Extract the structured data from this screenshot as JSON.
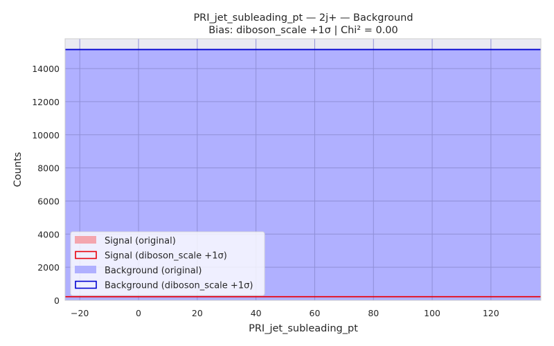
{
  "chart_data": {
    "type": "area",
    "title": "PRI_jet_subleading_pt — 2j+ — Background",
    "subtitle": "Bias: diboson_scale +1σ | Chi² = 0.00",
    "xlabel": "PRI_jet_subleading_pt",
    "ylabel": "Counts",
    "xlim": [
      -25,
      137
    ],
    "ylim": [
      0,
      15800
    ],
    "x_ticks": [
      -20,
      0,
      20,
      40,
      60,
      80,
      100,
      120
    ],
    "y_ticks": [
      0,
      2000,
      4000,
      6000,
      8000,
      10000,
      12000,
      14000
    ],
    "grid": true,
    "legend_position": "lower-left",
    "series": [
      {
        "name": "Signal (original)",
        "style": "fill",
        "color": "#f4a6ae",
        "x": [
          -25,
          137
        ],
        "y": [
          180,
          180
        ]
      },
      {
        "name": "Signal (diboson_scale +1σ)",
        "style": "step",
        "color": "#e8000b",
        "x": [
          -25,
          137
        ],
        "y": [
          220,
          220
        ]
      },
      {
        "name": "Background (original)",
        "style": "fill",
        "color": "#b0b0ff",
        "x": [
          -25,
          137
        ],
        "y": [
          15150,
          15150
        ]
      },
      {
        "name": "Background (diboson_scale +1σ)",
        "style": "step",
        "color": "#0000d0",
        "x": [
          -25,
          137
        ],
        "y": [
          15150,
          15150
        ]
      }
    ]
  }
}
